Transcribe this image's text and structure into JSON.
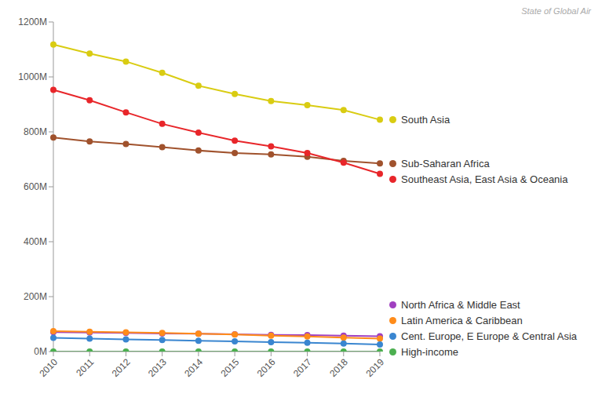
{
  "chart_data": {
    "type": "line",
    "source": "State of Global Air",
    "x": [
      "2010",
      "2011",
      "2012",
      "2013",
      "2014",
      "2015",
      "2016",
      "2017",
      "2018",
      "2019"
    ],
    "ylim": [
      0,
      1200
    ],
    "yticks": [
      {
        "value": 0,
        "label": "0M"
      },
      {
        "value": 200,
        "label": "200M"
      },
      {
        "value": 400,
        "label": "400M"
      },
      {
        "value": 600,
        "label": "600M"
      },
      {
        "value": 800,
        "label": "800M"
      },
      {
        "value": 1000,
        "label": "1000M"
      },
      {
        "value": 1200,
        "label": "1200M"
      }
    ],
    "grid": false,
    "marker": "circle",
    "series": [
      {
        "name": "South Asia",
        "color": "#d9cc12",
        "values": [
          1118,
          1085,
          1056,
          1015,
          968,
          938,
          912,
          897,
          879,
          844
        ]
      },
      {
        "name": "Sub-Saharan Africa",
        "color": "#a0522d",
        "values": [
          779,
          765,
          756,
          744,
          732,
          723,
          718,
          709,
          694,
          685
        ]
      },
      {
        "name": "Southeast Asia, East Asia & Oceania",
        "color": "#e8262a",
        "values": [
          953,
          915,
          871,
          829,
          797,
          768,
          747,
          723,
          688,
          647
        ]
      },
      {
        "name": "North Africa & Middle East",
        "color": "#a040c0",
        "values": [
          71,
          69,
          68,
          66,
          65,
          63,
          61,
          60,
          58,
          56
        ]
      },
      {
        "name": "Latin America & Caribbean",
        "color": "#ff8c1a",
        "values": [
          74,
          72,
          70,
          68,
          65,
          62,
          58,
          55,
          51,
          47
        ]
      },
      {
        "name": "Cent. Europe, E Europe & Central Asia",
        "color": "#3a86d0",
        "values": [
          50,
          47,
          44,
          42,
          39,
          37,
          34,
          32,
          29,
          26
        ]
      },
      {
        "name": "High-income",
        "color": "#4caf50",
        "values": [
          0,
          0,
          0,
          0,
          0,
          0,
          0,
          0,
          0,
          0
        ]
      }
    ]
  }
}
